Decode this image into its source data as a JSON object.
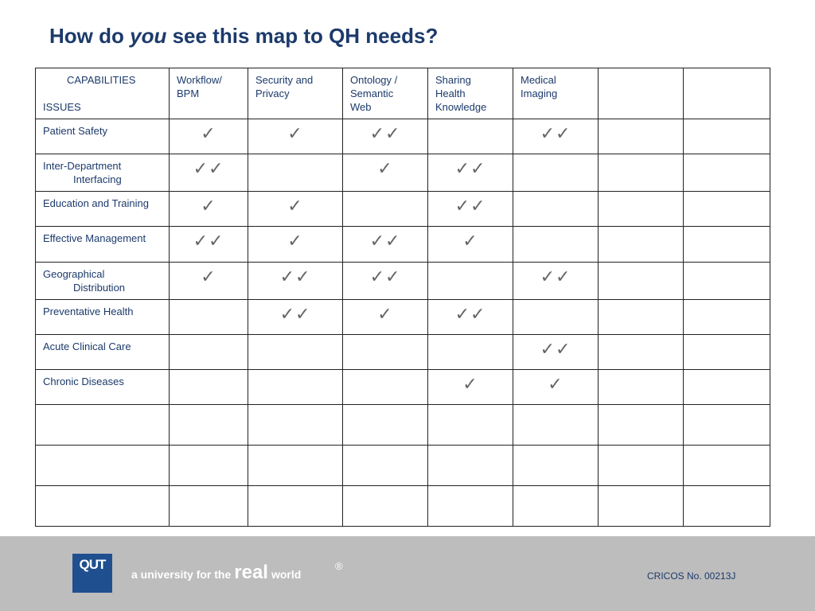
{
  "title": {
    "prefix": "How do",
    "emph": "you",
    "suffix": "see this map to QH needs?"
  },
  "table": {
    "corner_top": "CAPABILITIES",
    "corner_bottom": "ISSUES",
    "columns": [
      [
        "Workflow/",
        "BPM"
      ],
      [
        "Security and",
        "Privacy"
      ],
      [
        "Ontology /",
        "Semantic",
        "Web"
      ],
      [
        "Sharing",
        "Health",
        "Knowledge"
      ],
      [
        "Medical",
        "Imaging"
      ],
      [],
      []
    ],
    "rows": [
      {
        "issue": [
          "Patient Safety"
        ],
        "cells": [
          "✓",
          "✓",
          "✓✓",
          "",
          "✓✓",
          "",
          ""
        ]
      },
      {
        "issue": [
          "Inter-Department",
          "Interfacing"
        ],
        "cells": [
          "✓✓",
          "",
          "✓",
          "✓✓",
          "",
          "",
          ""
        ]
      },
      {
        "issue": [
          "Education and Training"
        ],
        "cells": [
          "✓",
          "✓",
          "",
          "✓✓",
          "",
          "",
          ""
        ]
      },
      {
        "issue": [
          "Effective Management"
        ],
        "cells": [
          "✓✓",
          "✓",
          "✓✓",
          "✓",
          "",
          "",
          ""
        ]
      },
      {
        "issue": [
          "Geographical",
          "Distribution"
        ],
        "cells": [
          "✓",
          "✓✓",
          "✓✓",
          "",
          "✓✓",
          "",
          ""
        ]
      },
      {
        "issue": [
          "Preventative Health"
        ],
        "cells": [
          "",
          "✓✓",
          "✓",
          "✓✓",
          "",
          "",
          ""
        ]
      },
      {
        "issue": [
          "Acute Clinical Care"
        ],
        "cells": [
          "",
          "",
          "",
          "",
          "✓✓",
          "",
          ""
        ]
      },
      {
        "issue": [
          "Chronic Diseases"
        ],
        "cells": [
          "",
          "",
          "",
          "✓",
          "✓",
          "",
          ""
        ]
      },
      {
        "issue": [],
        "cells": [
          "",
          "",
          "",
          "",
          "",
          "",
          ""
        ]
      },
      {
        "issue": [],
        "cells": [
          "",
          "",
          "",
          "",
          "",
          "",
          ""
        ]
      },
      {
        "issue": [],
        "cells": [
          "",
          "",
          "",
          "",
          "",
          "",
          ""
        ]
      }
    ]
  },
  "footer": {
    "logo": "QUT",
    "tagline_a": "a university for the",
    "tagline_real": "real",
    "tagline_world": "world",
    "registered": "®",
    "cricos": "CRICOS No. 00213J"
  },
  "colors": {
    "title": "#1c3a6b",
    "footer_bg": "#bdbdbd",
    "logo_bg": "#1f4f8f",
    "check": "#666666"
  }
}
